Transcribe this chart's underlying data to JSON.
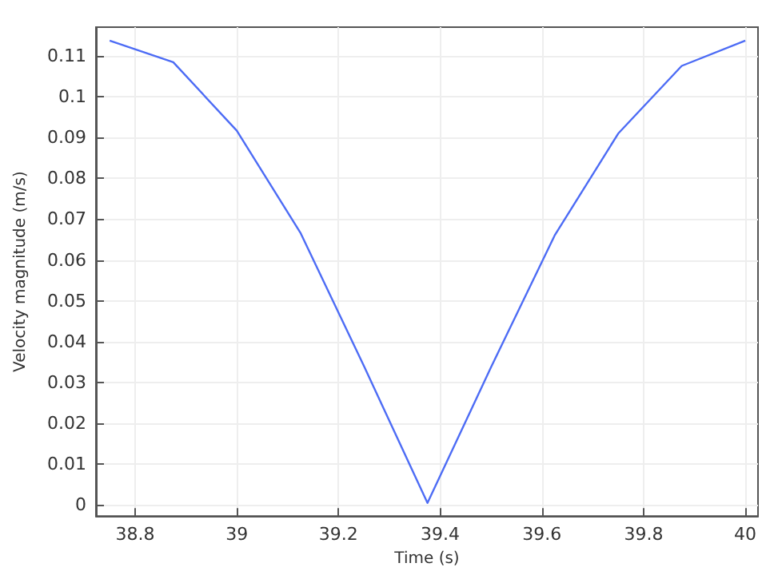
{
  "chart_data": {
    "type": "line",
    "xlabel": "Time (s)",
    "ylabel": "Velocity magnitude (m/s)",
    "x": [
      38.75,
      38.875,
      39,
      39.125,
      39.25,
      39.375,
      39.5,
      39.625,
      39.75,
      39.875,
      40
    ],
    "series": [
      {
        "color": "#4d6cf5",
        "values": [
          0.1138,
          0.1085,
          0.0917,
          0.0667,
          0.034,
          0.0004,
          0.0337,
          0.066,
          0.091,
          0.1076,
          0.1138
        ]
      }
    ],
    "xlim": [
      38.723,
      40.025
    ],
    "xticks": [
      38.8,
      39,
      39.2,
      39.4,
      39.6,
      39.8,
      40
    ],
    "ylim": [
      -0.0028,
      0.1171
    ],
    "yticks": [
      0,
      0.01,
      0.02,
      0.03,
      0.04,
      0.05,
      0.06,
      0.07,
      0.08,
      0.09,
      0.1,
      0.11
    ],
    "grid": true,
    "marker": "none",
    "line_style": "solid"
  }
}
